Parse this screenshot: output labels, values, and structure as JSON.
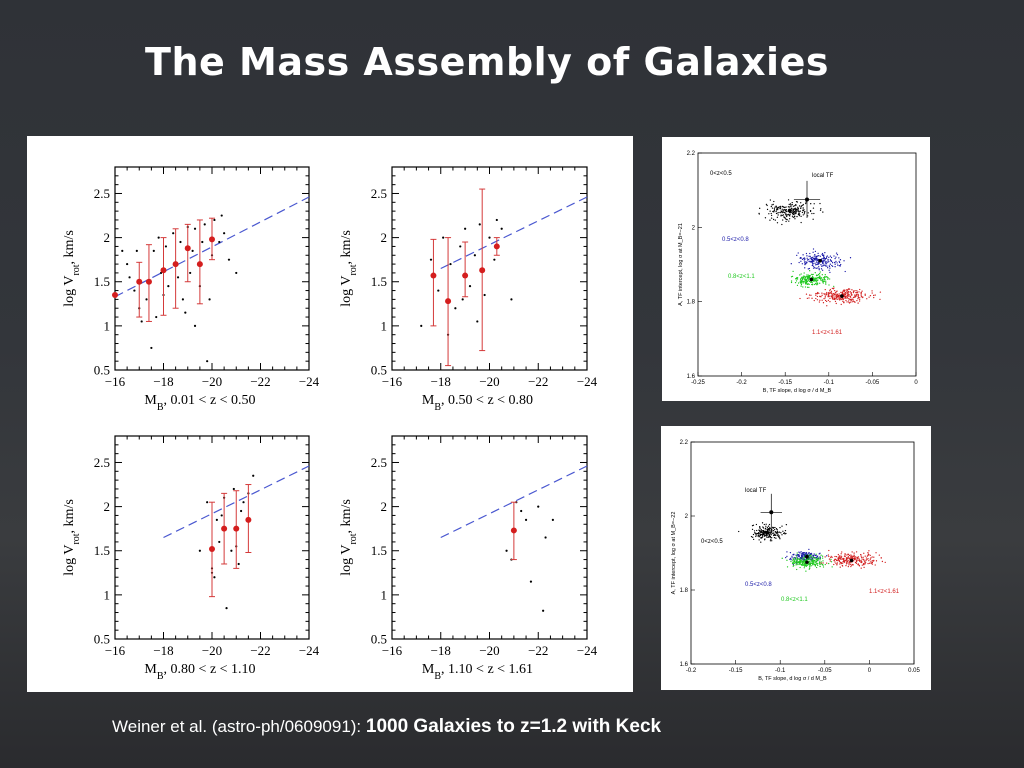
{
  "slide": {
    "title": "The Mass Assembly of Galaxies",
    "caption_prefix": "Weiner et al. (astro-ph/0609091): ",
    "caption_bold": "1000 Galaxies to z=1.2  with Keck"
  },
  "chart_data": [
    {
      "type": "scatter",
      "ylabel": "log V_rot, km/s",
      "xlabel": "M_B,   0.01 < z <  0.50",
      "xlim": [
        -16,
        -24
      ],
      "ylim": [
        0.5,
        2.8
      ],
      "xticks": [
        -16,
        -18,
        -20,
        -22,
        -24
      ],
      "yticks": [
        0.5,
        1,
        1.5,
        2,
        2.5
      ],
      "fit_line": [
        [
          -16,
          1.33
        ],
        [
          -24,
          2.46
        ]
      ],
      "binned": [
        {
          "x": -16.0,
          "y": 1.35,
          "err": [
            1.35,
            1.35
          ]
        },
        {
          "x": -17.0,
          "y": 1.5,
          "err": [
            1.1,
            1.72
          ]
        },
        {
          "x": -17.4,
          "y": 1.5,
          "err": [
            1.05,
            1.92
          ]
        },
        {
          "x": -18.0,
          "y": 1.63,
          "err": [
            1.12,
            2.0
          ]
        },
        {
          "x": -18.5,
          "y": 1.7,
          "err": [
            1.2,
            2.1
          ]
        },
        {
          "x": -19.0,
          "y": 1.88,
          "err": [
            1.5,
            2.15
          ]
        },
        {
          "x": -19.5,
          "y": 1.7,
          "err": [
            1.25,
            2.2
          ]
        },
        {
          "x": -20.0,
          "y": 1.98,
          "err": [
            1.75,
            2.22
          ]
        }
      ],
      "points": [
        [
          -16.3,
          1.85
        ],
        [
          -16.5,
          1.7
        ],
        [
          -16.6,
          1.55
        ],
        [
          -16.8,
          1.4
        ],
        [
          -17.0,
          1.2
        ],
        [
          -17.1,
          1.05
        ],
        [
          -17.3,
          1.3
        ],
        [
          -17.5,
          0.75
        ],
        [
          -17.6,
          1.85
        ],
        [
          -17.8,
          2.0
        ],
        [
          -17.9,
          1.6
        ],
        [
          -18.0,
          1.35
        ],
        [
          -18.1,
          1.9
        ],
        [
          -18.2,
          1.45
        ],
        [
          -18.4,
          2.05
        ],
        [
          -18.6,
          1.55
        ],
        [
          -18.7,
          1.95
        ],
        [
          -18.8,
          1.3
        ],
        [
          -19.0,
          2.12
        ],
        [
          -19.1,
          1.6
        ],
        [
          -19.2,
          1.85
        ],
        [
          -19.3,
          2.1
        ],
        [
          -19.5,
          1.45
        ],
        [
          -19.6,
          1.95
        ],
        [
          -19.7,
          2.15
        ],
        [
          -19.8,
          0.6
        ],
        [
          -20.0,
          1.8
        ],
        [
          -20.1,
          2.2
        ],
        [
          -20.3,
          1.95
        ],
        [
          -20.5,
          2.05
        ],
        [
          -20.7,
          1.75
        ],
        [
          -21.0,
          1.6
        ],
        [
          -19.3,
          1.0
        ],
        [
          -18.9,
          1.15
        ],
        [
          -17.7,
          1.1
        ],
        [
          -16.9,
          1.85
        ],
        [
          -20.4,
          2.25
        ],
        [
          -19.9,
          1.3
        ]
      ]
    },
    {
      "type": "scatter",
      "ylabel": "log V_rot, km/s",
      "xlabel": "M_B,   0.50 < z <  0.80",
      "xlim": [
        -16,
        -24
      ],
      "ylim": [
        0.5,
        2.8
      ],
      "xticks": [
        -16,
        -18,
        -20,
        -22,
        -24
      ],
      "yticks": [
        0.5,
        1,
        1.5,
        2,
        2.5
      ],
      "fit_line": [
        [
          -18,
          1.65
        ],
        [
          -24,
          2.46
        ]
      ],
      "binned": [
        {
          "x": -17.7,
          "y": 1.57,
          "err": [
            1.0,
            1.98
          ]
        },
        {
          "x": -18.3,
          "y": 1.28,
          "err": [
            0.55,
            2.0
          ]
        },
        {
          "x": -19.0,
          "y": 1.57,
          "err": [
            1.33,
            1.95
          ]
        },
        {
          "x": -19.7,
          "y": 1.63,
          "err": [
            0.72,
            2.55
          ]
        },
        {
          "x": -20.3,
          "y": 1.9,
          "err": [
            1.8,
            2.0
          ]
        }
      ],
      "points": [
        [
          -17.2,
          1.0
        ],
        [
          -17.6,
          1.75
        ],
        [
          -17.9,
          1.4
        ],
        [
          -18.1,
          2.0
        ],
        [
          -18.4,
          1.7
        ],
        [
          -18.6,
          1.2
        ],
        [
          -18.8,
          1.9
        ],
        [
          -19.0,
          2.1
        ],
        [
          -19.2,
          1.45
        ],
        [
          -19.4,
          1.8
        ],
        [
          -19.6,
          2.15
        ],
        [
          -19.8,
          1.35
        ],
        [
          -20.0,
          2.0
        ],
        [
          -20.2,
          1.75
        ],
        [
          -20.5,
          2.1
        ],
        [
          -20.9,
          1.3
        ],
        [
          -18.3,
          0.9
        ],
        [
          -19.5,
          1.05
        ],
        [
          -18.9,
          1.3
        ],
        [
          -20.3,
          2.2
        ]
      ]
    },
    {
      "type": "scatter",
      "ylabel": "log V_rot, km/s",
      "xlabel": "M_B,   0.80 < z <  1.10",
      "xlim": [
        -16,
        -24
      ],
      "ylim": [
        0.5,
        2.8
      ],
      "xticks": [
        -16,
        -18,
        -20,
        -22,
        -24
      ],
      "yticks": [
        0.5,
        1,
        1.5,
        2,
        2.5
      ],
      "fit_line": [
        [
          -18,
          1.65
        ],
        [
          -24,
          2.46
        ]
      ],
      "binned": [
        {
          "x": -20.0,
          "y": 1.52,
          "err": [
            0.98,
            2.05
          ]
        },
        {
          "x": -20.5,
          "y": 1.75,
          "err": [
            1.35,
            2.15
          ]
        },
        {
          "x": -21.0,
          "y": 1.75,
          "err": [
            1.3,
            2.18
          ]
        },
        {
          "x": -21.5,
          "y": 1.85,
          "err": [
            1.48,
            2.25
          ]
        }
      ],
      "points": [
        [
          -19.5,
          1.5
        ],
        [
          -19.8,
          2.05
        ],
        [
          -20.0,
          1.3
        ],
        [
          -20.1,
          1.2
        ],
        [
          -20.2,
          1.85
        ],
        [
          -20.3,
          1.6
        ],
        [
          -20.5,
          2.1
        ],
        [
          -20.6,
          0.85
        ],
        [
          -20.8,
          1.5
        ],
        [
          -20.9,
          2.2
        ],
        [
          -21.0,
          1.55
        ],
        [
          -21.1,
          1.35
        ],
        [
          -21.3,
          2.05
        ],
        [
          -21.5,
          2.15
        ],
        [
          -21.7,
          2.35
        ],
        [
          -20.4,
          1.9
        ],
        [
          -20.0,
          1.25
        ],
        [
          -21.2,
          1.95
        ]
      ]
    },
    {
      "type": "scatter",
      "ylabel": "log V_rot, km/s",
      "xlabel": "M_B,   1.10 < z <  1.61",
      "xlim": [
        -16,
        -24
      ],
      "ylim": [
        0.5,
        2.8
      ],
      "xticks": [
        -16,
        -18,
        -20,
        -22,
        -24
      ],
      "yticks": [
        0.5,
        1,
        1.5,
        2,
        2.5
      ],
      "fit_line": [
        [
          -18,
          1.65
        ],
        [
          -24,
          2.46
        ]
      ],
      "binned": [
        {
          "x": -21.0,
          "y": 1.73,
          "err": [
            1.4,
            2.05
          ]
        }
      ],
      "points": [
        [
          -20.7,
          1.5
        ],
        [
          -20.9,
          1.4
        ],
        [
          -21.1,
          2.05
        ],
        [
          -21.3,
          1.95
        ],
        [
          -21.7,
          1.15
        ],
        [
          -22.0,
          2.0
        ],
        [
          -22.2,
          0.82
        ],
        [
          -22.3,
          1.65
        ],
        [
          -22.6,
          1.85
        ],
        [
          -21.5,
          1.85
        ]
      ]
    },
    {
      "type": "scatter",
      "xlabel": "B, TF slope, d log σ / d M_B",
      "ylabel": "A, TF intercept, log σ at M_B=−21",
      "xlim": [
        -0.25,
        0
      ],
      "ylim": [
        1.6,
        2.2
      ],
      "xticks": [
        -0.25,
        -0.2,
        -0.15,
        -0.1,
        -0.05,
        0
      ],
      "yticks": [
        1.6,
        1.8,
        2,
        2.2
      ],
      "labels": [
        "local TF",
        "0<z<0.5",
        "0.5<z<0.8",
        "0.8<z<1.1",
        "1.1<z<1.61"
      ],
      "colors": {
        "0<z<0.5": "#000000",
        "0.5<z<0.8": "#1a1aa8",
        "0.8<z<1.1": "#1ec81e",
        "1.1<z<1.61": "#d21e1e"
      },
      "local_tf": {
        "x": -0.125,
        "y": 2.075,
        "xerr": 0.015,
        "yerr": 0.05
      },
      "clouds": [
        {
          "group": "0<z<0.5",
          "cx": -0.145,
          "cy": 2.045,
          "sx": 0.022,
          "sy": 0.02,
          "n": 200
        },
        {
          "group": "0.5<z<0.8",
          "cx": -0.11,
          "cy": 1.91,
          "sx": 0.02,
          "sy": 0.018,
          "n": 200
        },
        {
          "group": "0.8<z<1.1",
          "cx": -0.12,
          "cy": 1.86,
          "sx": 0.018,
          "sy": 0.014,
          "n": 200
        },
        {
          "group": "1.1<z<1.61",
          "cx": -0.085,
          "cy": 1.815,
          "sx": 0.028,
          "sy": 0.016,
          "n": 260
        }
      ],
      "centers": [
        [
          -0.145,
          2.045
        ],
        [
          -0.11,
          1.91
        ],
        [
          -0.12,
          1.86
        ],
        [
          -0.085,
          1.815
        ]
      ]
    },
    {
      "type": "scatter",
      "xlabel": "B, TF slope, d log σ / d M_B",
      "ylabel": "A, TF intercept, log σ at M_B=−22",
      "xlim": [
        -0.2,
        0.05
      ],
      "ylim": [
        1.6,
        2.2
      ],
      "xticks": [
        -0.2,
        -0.15,
        -0.1,
        -0.05,
        0,
        0.05
      ],
      "yticks": [
        1.6,
        1.8,
        2,
        2.2
      ],
      "labels": [
        "local TF",
        "0<z<0.5",
        "0.5<z<0.8",
        "0.8<z<1.1",
        "1.1<z<1.61"
      ],
      "colors": {
        "0<z<0.5": "#000000",
        "0.5<z<0.8": "#1a1aa8",
        "0.8<z<1.1": "#1ec81e",
        "1.1<z<1.61": "#d21e1e"
      },
      "local_tf": {
        "x": -0.11,
        "y": 2.01,
        "xerr": 0.012,
        "yerr": 0.05
      },
      "clouds": [
        {
          "group": "0<z<0.5",
          "cx": -0.115,
          "cy": 1.955,
          "sx": 0.016,
          "sy": 0.018,
          "n": 180
        },
        {
          "group": "0.5<z<0.8",
          "cx": -0.07,
          "cy": 1.89,
          "sx": 0.014,
          "sy": 0.012,
          "n": 150
        },
        {
          "group": "0.8<z<1.1",
          "cx": -0.07,
          "cy": 1.875,
          "sx": 0.02,
          "sy": 0.014,
          "n": 200
        },
        {
          "group": "1.1<z<1.61",
          "cx": -0.02,
          "cy": 1.88,
          "sx": 0.025,
          "sy": 0.016,
          "n": 220
        }
      ],
      "centers": [
        [
          -0.115,
          1.955
        ],
        [
          -0.07,
          1.89
        ],
        [
          -0.07,
          1.875
        ],
        [
          -0.02,
          1.88
        ]
      ]
    }
  ]
}
